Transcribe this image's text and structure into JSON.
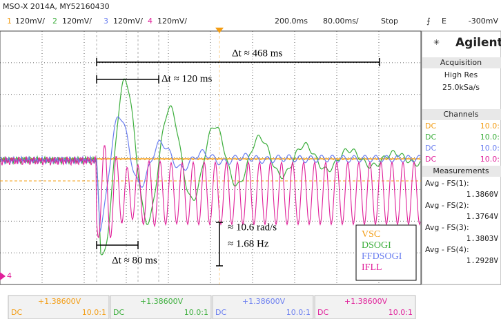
{
  "header": {
    "model": "MSO-X 2014A, MY52160430",
    "channels": [
      {
        "num": "1",
        "scale": "120mV/",
        "color": "#f39c12"
      },
      {
        "num": "2",
        "scale": "120mV/",
        "color": "#3cae3c"
      },
      {
        "num": "3",
        "scale": "120mV/",
        "color": "#6a7ef0"
      },
      {
        "num": "4",
        "scale": "120mV/",
        "color": "#e0209a"
      }
    ],
    "time_ref": "200.0ms",
    "time_scale": "80.00ms/",
    "status": "Stop",
    "trigger_icon": "⨍",
    "trigger_edge": "E",
    "trigger_level": "-300mV"
  },
  "screen": {
    "ground_marker": "4",
    "annotations": {
      "dt_total": "Δt ≈ 468 ms",
      "dt_peak": "Δt ≈ 120 ms",
      "dt_dip": "Δt ≈ 80 ms",
      "freq_rad": "≈ 10.6 rad/s",
      "freq_hz": "≈ 1.68 Hz"
    },
    "legend": [
      {
        "name": "VSC",
        "color": "#f39c12"
      },
      {
        "name": "DSOGI",
        "color": "#3cae3c"
      },
      {
        "name": "FFDSOGI",
        "color": "#6a7ef0"
      },
      {
        "name": "IFLL",
        "color": "#e0209a"
      }
    ]
  },
  "sidebar": {
    "brand": "Agilent",
    "acquisition": {
      "title": "Acquisition",
      "mode": "High Res",
      "rate": "25.0kSa/s"
    },
    "channels": {
      "title": "Channels",
      "rows": [
        {
          "coupling": "DC",
          "probe": "10.0:"
        },
        {
          "coupling": "DC",
          "probe": "10.0:"
        },
        {
          "coupling": "DC",
          "probe": "10.0:"
        },
        {
          "coupling": "DC",
          "probe": "10.0:"
        }
      ]
    },
    "measurements": {
      "title": "Measurements",
      "items": [
        {
          "label": "Avg - FS(1):",
          "value": "1.3860V"
        },
        {
          "label": "Avg - FS(2):",
          "value": "1.3764V"
        },
        {
          "label": "Avg - FS(3):",
          "value": "1.3803V"
        },
        {
          "label": "Avg - FS(4):",
          "value": "1.2928V"
        }
      ]
    }
  },
  "footer": [
    {
      "offset": "+1.38600V",
      "coupling": "DC",
      "probe": "10.0:1"
    },
    {
      "offset": "+1.38600V",
      "coupling": "DC",
      "probe": "10.0:1"
    },
    {
      "offset": "+1.38600V",
      "coupling": "DC",
      "probe": "10.0:1"
    },
    {
      "offset": "+1.38600V",
      "coupling": "DC",
      "probe": "10.0:1"
    }
  ]
}
